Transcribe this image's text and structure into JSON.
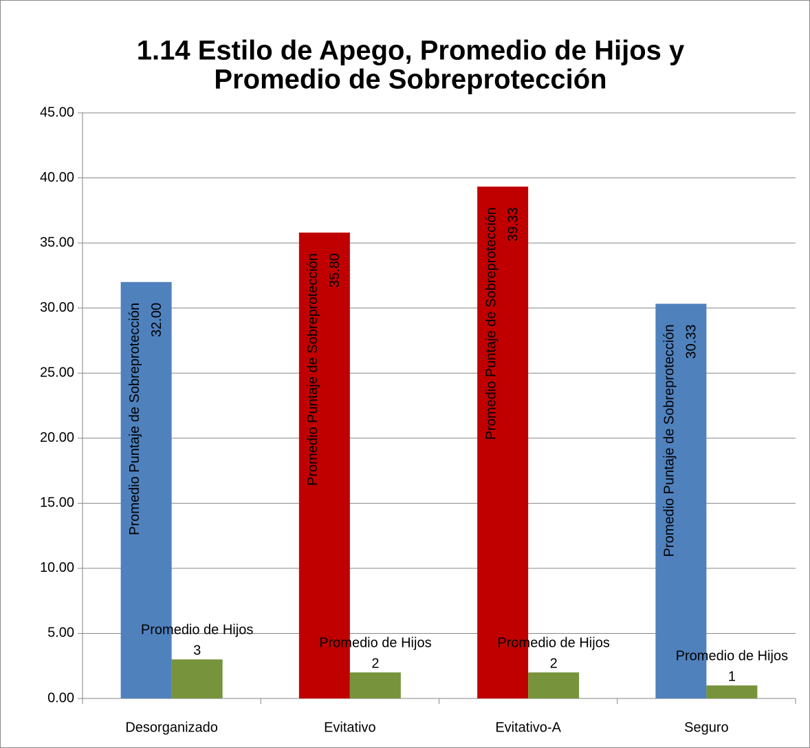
{
  "chart_data": {
    "type": "bar",
    "title": [
      "1.14 Estilo de Apego, Promedio de Hijos y",
      "Promedio de Sobreprotección"
    ],
    "categories": [
      "Desorganizado",
      "Evitativo",
      "Evitativo-A",
      "Seguro"
    ],
    "series": [
      {
        "name": "Promedio Puntaje de Sobreprotección",
        "colors": [
          "#4f81bd",
          "#c00000",
          "#c00000",
          "#4f81bd"
        ],
        "values": [
          32.0,
          35.8,
          39.33,
          30.33
        ],
        "value_labels": [
          "32.00",
          "35.80",
          "39.33",
          "30.33"
        ]
      },
      {
        "name": "Promedio de Hijos",
        "color": "#77933c",
        "values": [
          3,
          2,
          2,
          1
        ]
      }
    ],
    "ylim": [
      0,
      45
    ],
    "yticks": [
      {
        "value": 0,
        "label": "0.00"
      },
      {
        "value": 5,
        "label": "5.00"
      },
      {
        "value": 10,
        "label": "10.00"
      },
      {
        "value": 15,
        "label": "15.00"
      },
      {
        "value": 20,
        "label": "20.00"
      },
      {
        "value": 25,
        "label": "25.00"
      },
      {
        "value": 30,
        "label": "30.00"
      },
      {
        "value": 35,
        "label": "35.00"
      },
      {
        "value": 40,
        "label": "40.00"
      },
      {
        "value": 45,
        "label": "45.00"
      }
    ],
    "grid": true
  }
}
